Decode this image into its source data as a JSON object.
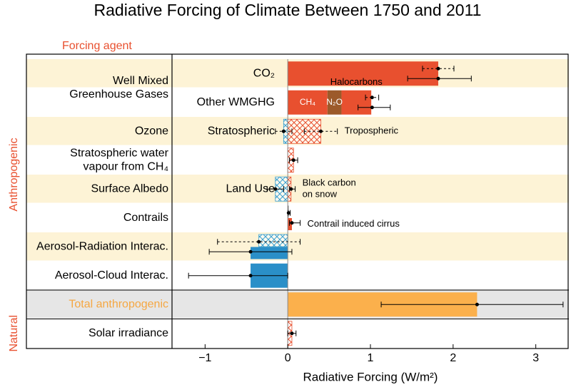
{
  "chart_data": {
    "type": "bar",
    "orientation": "horizontal",
    "title": "Radiative Forcing of Climate Between 1750 and 2011",
    "header": "Forcing agent",
    "xlabel": "Radiative Forcing (W/m²)",
    "xlim": [
      -1.4,
      3.4
    ],
    "xticks": [
      {
        "value": -1,
        "label": "−1"
      },
      0,
      1,
      2,
      3
    ],
    "sections": [
      {
        "label": "Anthropogenic",
        "rows": [
          {
            "agent": [
              "Well Mixed",
              "Greenhouse Gases"
            ],
            "inner": "CO₂",
            "bars": [
              [
                {
                  "value": 1.82,
                  "color": "#e8502f"
                }
              ]
            ],
            "estimates": [
              [
                {
                  "value": 1.82,
                  "low": 1.63,
                  "high": 2.01,
                  "style": "dashed"
                }
              ],
              [
                {
                  "value": 1.82,
                  "low": 1.45,
                  "high": 2.22,
                  "style": "solid"
                }
              ]
            ]
          },
          {
            "inner": "Other WMGHG",
            "bars": [
              [
                {
                  "label": "CH₄",
                  "value": 0.48,
                  "color": "#e8502f"
                },
                {
                  "label": "N₂O",
                  "value": 0.17,
                  "color": "#9c5a2a"
                },
                {
                  "note": [
                    "Halocarbons"
                  ],
                  "value": 0.36,
                  "color": "#e8502f"
                }
              ]
            ],
            "estimates": [
              [
                {
                  "value": 1.02,
                  "low": 0.94,
                  "high": 1.1,
                  "style": "dashed"
                }
              ],
              [
                {
                  "value": 1.02,
                  "low": 0.85,
                  "high": 1.24,
                  "style": "solid"
                }
              ]
            ]
          },
          {
            "agent": [
              "Ozone"
            ],
            "inner": "Stratospheric",
            "bars": [
              [
                {
                  "value": -0.05,
                  "color": "#3a9fd0",
                  "hatched": true
                },
                {
                  "note": [
                    "Tropospheric"
                  ],
                  "value": 0.4,
                  "color": "#e8502f",
                  "hatched": true
                }
              ]
            ],
            "estimates": [
              [
                {
                  "value": -0.05,
                  "low": -0.15,
                  "high": 0.05,
                  "style": "dashed"
                },
                {
                  "value": 0.4,
                  "low": 0.2,
                  "high": 0.6,
                  "style": "dashed"
                }
              ]
            ]
          },
          {
            "agent": [
              "Stratospheric water",
              "vapour from CH₄"
            ],
            "bars": [
              [
                {
                  "value": 0.07,
                  "color": "#e8502f",
                  "hatched": true
                }
              ]
            ],
            "estimates": [
              [
                {
                  "value": 0.07,
                  "low": 0.02,
                  "high": 0.12,
                  "style": "solid"
                }
              ]
            ]
          },
          {
            "agent": [
              "Surface Albedo"
            ],
            "inner": "Land Use",
            "bars": [
              [
                {
                  "value": -0.15,
                  "color": "#3a9fd0",
                  "hatched": true
                },
                {
                  "note": [
                    "Black carbon",
                    "on snow"
                  ],
                  "value": 0.04,
                  "color": "#e8502f",
                  "hatched": true
                }
              ]
            ],
            "estimates": [
              [
                {
                  "value": -0.15,
                  "low": -0.25,
                  "high": -0.05,
                  "style": "solid"
                },
                {
                  "value": 0.04,
                  "low": 0.02,
                  "high": 0.09,
                  "style": "solid"
                }
              ]
            ]
          },
          {
            "agent": [
              "Contrails"
            ],
            "bars": [
              [
                {
                  "value": 0.01,
                  "color": "#555555"
                }
              ],
              [
                {
                  "note": [
                    "Contrail induced cirrus"
                  ],
                  "value": 0.05,
                  "color": "#e8502f"
                }
              ]
            ],
            "estimates": [
              [
                {
                  "value": 0.01,
                  "low": 0.005,
                  "high": 0.03,
                  "style": "solid"
                }
              ],
              [
                {
                  "value": 0.05,
                  "low": 0.02,
                  "high": 0.15,
                  "style": "solid"
                }
              ]
            ]
          },
          {
            "agent": [
              "Aerosol-Radiation Interac."
            ],
            "bars": [
              [
                {
                  "value": -0.35,
                  "color": "#3a9fd0",
                  "hatched": true
                }
              ],
              [
                {
                  "value": -0.45,
                  "color": "#2a8fc8"
                }
              ]
            ],
            "estimates": [
              [
                {
                  "value": -0.35,
                  "low": -0.85,
                  "high": 0.15,
                  "style": "dashed"
                }
              ],
              [
                {
                  "value": -0.45,
                  "low": -0.95,
                  "high": 0.05,
                  "style": "solid"
                }
              ]
            ]
          },
          {
            "agent": [
              "Aerosol-Cloud Interac."
            ],
            "bars": [
              [
                {
                  "value": -0.45,
                  "color": "#2a8fc8"
                }
              ]
            ],
            "estimates": [
              [
                {
                  "value": -0.45,
                  "low": -1.2,
                  "high": 0.0,
                  "style": "solid"
                }
              ]
            ]
          }
        ]
      },
      {
        "background": "#e6e6e6",
        "rows": [
          {
            "agent": [
              "Total anthropogenic"
            ],
            "agent_color": "#f5a742",
            "bars": [
              [
                {
                  "value": 2.29,
                  "color": "#fbb04c"
                }
              ]
            ],
            "estimates": [
              [
                {
                  "value": 2.29,
                  "low": 1.13,
                  "high": 3.33,
                  "style": "solid"
                }
              ]
            ]
          }
        ]
      },
      {
        "label": "Natural",
        "rows": [
          {
            "agent": [
              "Solar irradiance"
            ],
            "bars": [
              [
                {
                  "value": 0.05,
                  "color": "#e8502f",
                  "hatched": true
                }
              ]
            ],
            "estimates": [
              [
                {
                  "value": 0.05,
                  "low": 0.0,
                  "high": 0.1,
                  "style": "solid"
                }
              ]
            ]
          }
        ]
      }
    ]
  }
}
